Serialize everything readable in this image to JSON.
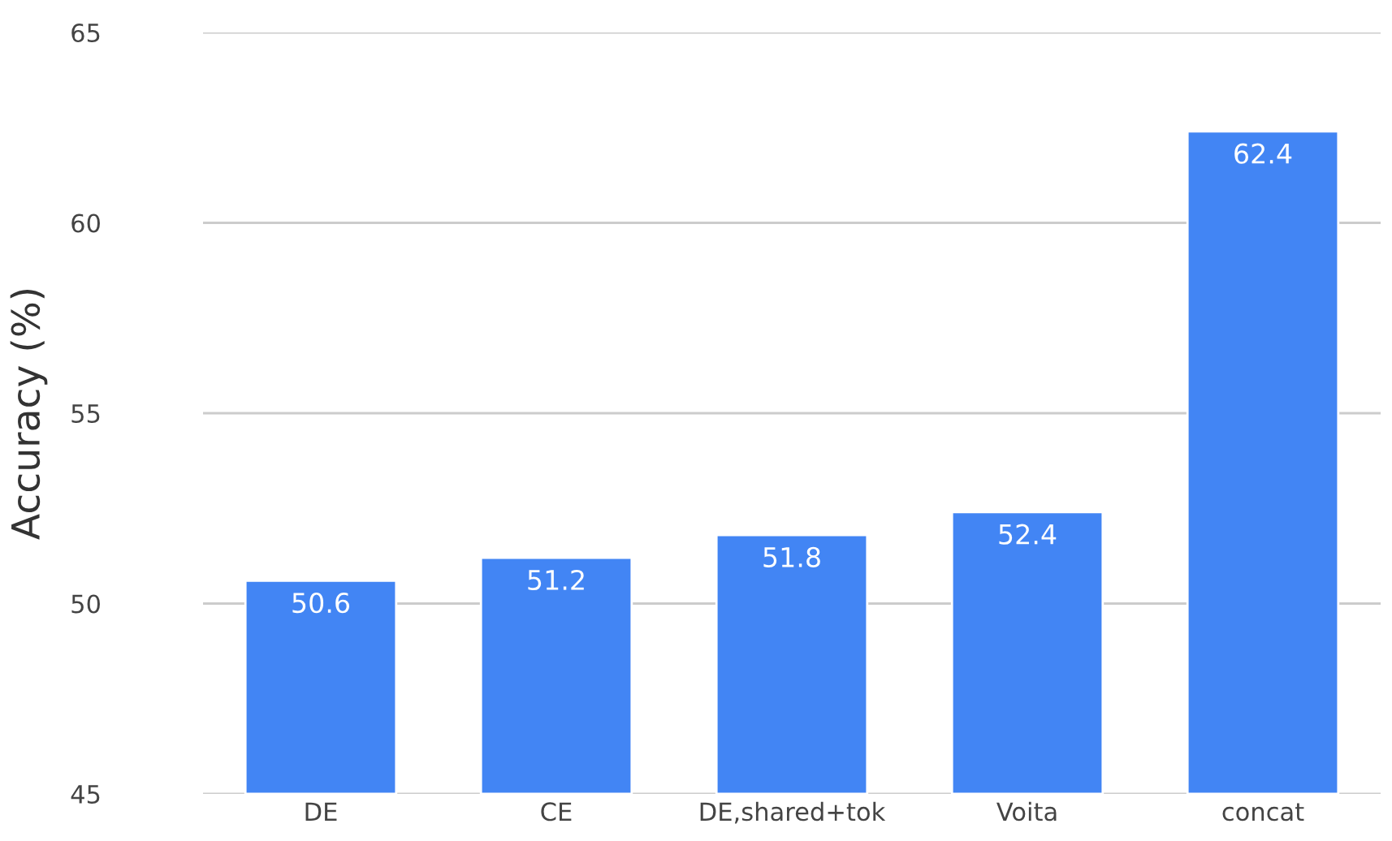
{
  "chart_data": {
    "type": "bar",
    "ylabel": "Accuracy (%)",
    "categories": [
      "DE",
      "CE",
      "DE,shared+tok",
      "Voita",
      "concat"
    ],
    "values": [
      50.6,
      51.2,
      51.8,
      52.4,
      62.4
    ],
    "color": "#4285f4",
    "ylim": [
      45,
      65
    ],
    "yticks": [
      45,
      50,
      55,
      60,
      65
    ],
    "grid": "y",
    "data_labels": true,
    "legend": false
  }
}
